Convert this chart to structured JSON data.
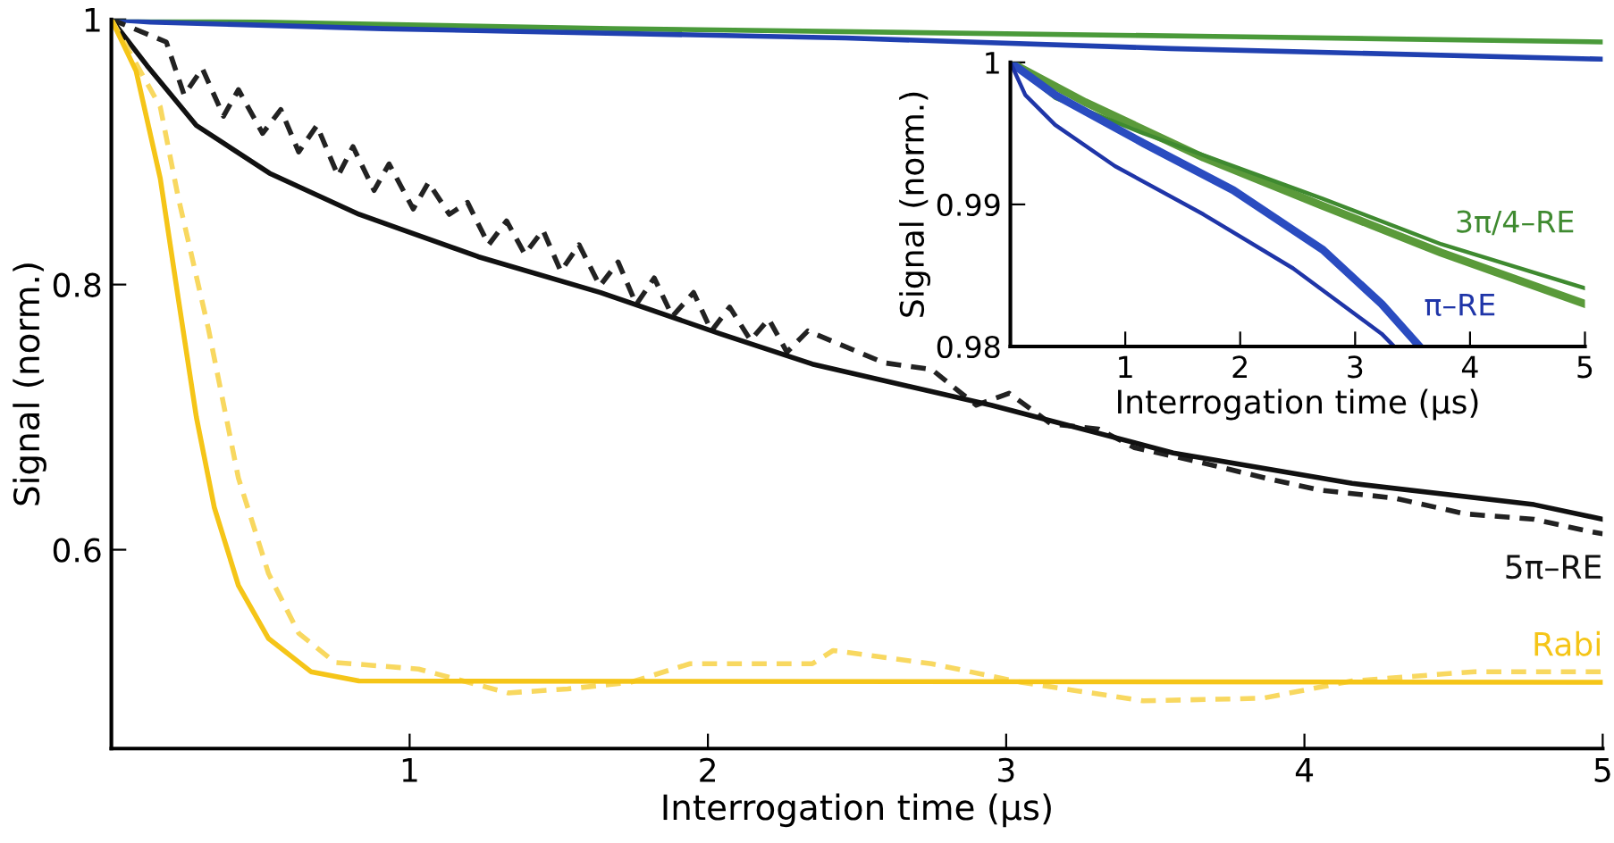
{
  "chart_data": [
    {
      "type": "line",
      "xlabel": "Interrogation time (µs)",
      "ylabel": "Signal (norm.)",
      "xlim": [
        0,
        5
      ],
      "ylim": [
        0.45,
        1
      ],
      "xticks": [
        1,
        2,
        3,
        4,
        5
      ],
      "yticks": [
        0.6,
        0.8,
        1
      ],
      "grid": false,
      "legend": false,
      "series": [
        {
          "color": "#4a9a3a",
          "line_style": "solid",
          "x": [
            0,
            1.68,
            3.75,
            5
          ],
          "values": [
            1,
            0.993,
            0.987,
            0.983
          ]
        },
        {
          "color": "#2040b0",
          "line_style": "solid",
          "x": [
            0,
            0.13,
            0.91,
            2.46,
            3.55,
            5
          ],
          "values": [
            1,
            0.998,
            0.993,
            0.986,
            0.978,
            0.97
          ]
        },
        {
          "color": "#222222",
          "line_style": "dashed",
          "x": [
            0,
            0.184,
            0.244,
            0.305,
            0.376,
            0.426,
            0.507,
            0.568,
            0.628,
            0.689,
            0.76,
            0.81,
            0.881,
            0.931,
            1.012,
            1.063,
            1.133,
            1.194,
            1.265,
            1.325,
            1.386,
            1.447,
            1.507,
            1.568,
            1.638,
            1.699,
            1.76,
            1.82,
            1.881,
            1.952,
            2.012,
            2.073,
            2.143,
            2.204,
            2.265,
            2.335,
            2.59,
            2.75,
            2.9,
            3.01,
            3.15,
            3.31,
            3.43,
            3.65,
            3.87,
            4.05,
            4.3,
            4.54,
            4.77,
            4.95,
            5
          ],
          "values": [
            1,
            0.983,
            0.943,
            0.963,
            0.927,
            0.947,
            0.914,
            0.932,
            0.9,
            0.92,
            0.882,
            0.904,
            0.871,
            0.891,
            0.857,
            0.877,
            0.853,
            0.862,
            0.83,
            0.848,
            0.823,
            0.841,
            0.81,
            0.83,
            0.799,
            0.817,
            0.785,
            0.805,
            0.776,
            0.794,
            0.765,
            0.783,
            0.758,
            0.774,
            0.749,
            0.765,
            0.741,
            0.736,
            0.709,
            0.718,
            0.695,
            0.691,
            0.677,
            0.666,
            0.654,
            0.645,
            0.639,
            0.627,
            0.623,
            0.614,
            0.612
          ]
        },
        {
          "name": "5π–RE",
          "color": "#111111",
          "line_style": "solid",
          "x": [
            0,
            0.12,
            0.285,
            0.53,
            0.83,
            1.23,
            1.64,
            2.04,
            2.35,
            2.95,
            3.56,
            4.16,
            4.77,
            5
          ],
          "values": [
            1,
            0.965,
            0.92,
            0.884,
            0.853,
            0.821,
            0.794,
            0.763,
            0.74,
            0.709,
            0.673,
            0.65,
            0.634,
            0.623
          ]
        },
        {
          "color": "#f8d860",
          "line_style": "dashed",
          "x": [
            0,
            0.164,
            0.224,
            0.325,
            0.426,
            0.527,
            0.628,
            0.75,
            1.03,
            1.33,
            1.53,
            1.74,
            1.94,
            2.35,
            2.42,
            2.75,
            3.05,
            3.46,
            3.86,
            4.16,
            4.57,
            5
          ],
          "values": [
            1,
            0.934,
            0.866,
            0.767,
            0.654,
            0.582,
            0.537,
            0.515,
            0.51,
            0.492,
            0.495,
            0.5,
            0.514,
            0.514,
            0.524,
            0.514,
            0.5,
            0.486,
            0.488,
            0.501,
            0.508,
            0.508
          ]
        },
        {
          "name": "Rabi",
          "color": "#f5c518",
          "line_style": "solid",
          "x": [
            0,
            0.083,
            0.164,
            0.224,
            0.285,
            0.345,
            0.426,
            0.527,
            0.669,
            0.83,
            5
          ],
          "values": [
            1,
            0.961,
            0.88,
            0.79,
            0.7,
            0.632,
            0.573,
            0.533,
            0.508,
            0.501,
            0.5
          ]
        }
      ]
    },
    {
      "type": "line",
      "xlabel": "Interrogation time (µs)",
      "ylabel": "Signal (norm.)",
      "xlim": [
        0,
        5
      ],
      "ylim": [
        0.98,
        1
      ],
      "xticks": [
        1,
        2,
        3,
        4,
        5
      ],
      "yticks": [
        0.98,
        0.99,
        1
      ],
      "grid": false,
      "legend": false,
      "series": [
        {
          "color": "#5a9a3a",
          "line_style": "solid",
          "x": [
            0,
            0.65,
            1.68,
            2.72,
            3.75,
            5
          ],
          "values": [
            1,
            0.9972,
            0.9933,
            0.9899,
            0.9866,
            0.983
          ]
        },
        {
          "name": "3π/4–RE",
          "color": "#3f8a30",
          "line_style": "solid",
          "x": [
            0,
            0.39,
            1.16,
            2.72,
            3.75,
            5
          ],
          "values": [
            1,
            0.9975,
            0.995,
            0.9904,
            0.9872,
            0.9841
          ]
        },
        {
          "color": "#2a4cc0",
          "line_style": "solid",
          "x": [
            0,
            0.39,
            1.16,
            1.94,
            2.72,
            3.23,
            3.55
          ],
          "values": [
            1,
            0.9977,
            0.9943,
            0.991,
            0.9868,
            0.983,
            0.9801
          ]
        },
        {
          "name": "π–RE",
          "color": "#1f35a8",
          "line_style": "solid",
          "x": [
            0,
            0.13,
            0.39,
            0.91,
            1.68,
            2.46,
            3.23,
            3.34
          ],
          "values": [
            1,
            0.9977,
            0.9956,
            0.9927,
            0.9893,
            0.9855,
            0.9809,
            0.98
          ]
        }
      ]
    }
  ]
}
